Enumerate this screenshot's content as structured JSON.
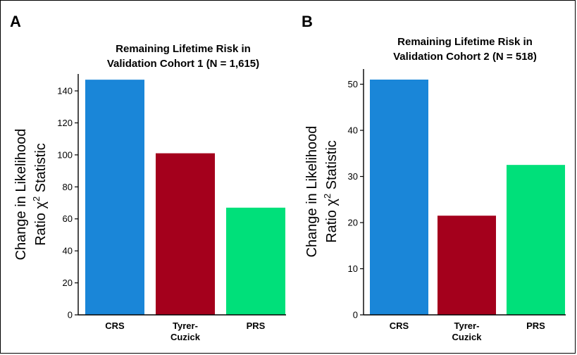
{
  "chart_data": [
    {
      "panel_label": "A",
      "type": "bar",
      "title_lines": [
        "Remaining Lifetime Risk in",
        "Validation Cohort 1 (N = 1,615)"
      ],
      "ylabel_lines": [
        "Change in Likelihood",
        "Ratio χ2 Statistic"
      ],
      "ylabel_line2_parts": {
        "text": "Ratio χ",
        "sup": "2",
        "rest": " Statistic"
      },
      "categories": [
        [
          "CRS"
        ],
        [
          "Tyrer-",
          "Cuzick"
        ],
        [
          "PRS"
        ]
      ],
      "values": [
        147,
        101,
        67
      ],
      "colors": [
        "#1a86d8",
        "#a4001c",
        "#00e07a"
      ],
      "ylim": [
        0,
        150
      ],
      "yticks": [
        0,
        20,
        40,
        60,
        80,
        100,
        120,
        140
      ]
    },
    {
      "panel_label": "B",
      "type": "bar",
      "title_lines": [
        "Remaining Lifetime Risk in",
        "Validation Cohort 2 (N = 518)"
      ],
      "ylabel_lines": [
        "Change in Likelihood",
        "Ratio χ2 Statistic"
      ],
      "ylabel_line2_parts": {
        "text": "Ratio χ",
        "sup": "2",
        "rest": " Statistic"
      },
      "categories": [
        [
          "CRS"
        ],
        [
          "Tyrer-",
          "Cuzick"
        ],
        [
          "PRS"
        ]
      ],
      "values": [
        51,
        21.5,
        32.5
      ],
      "colors": [
        "#1a86d8",
        "#a4001c",
        "#00e07a"
      ],
      "ylim": [
        0,
        53
      ],
      "yticks": [
        0,
        10,
        20,
        30,
        40,
        50
      ]
    }
  ]
}
